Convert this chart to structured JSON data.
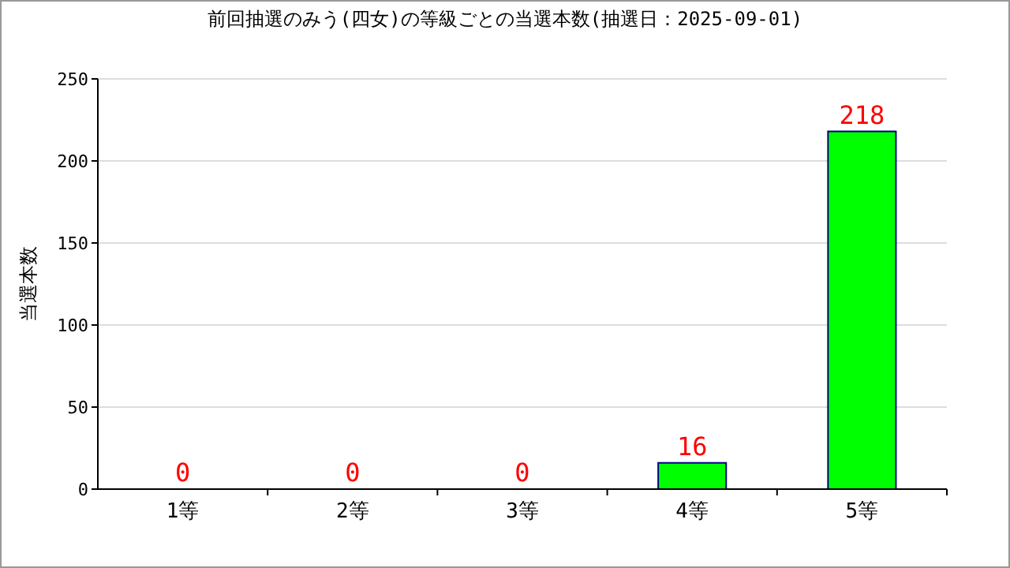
{
  "chart_data": {
    "type": "bar",
    "title": "前回抽選のみう(四女)の等級ごとの当選本数(抽選日：2025-09-01)",
    "ylabel": "当選本数",
    "categories": [
      "1等",
      "2等",
      "3等",
      "4等",
      "5等"
    ],
    "values": [
      0,
      0,
      0,
      16,
      218
    ],
    "color": "#00ff00",
    "ylim": [
      0,
      250
    ],
    "yticks": [
      0,
      50,
      100,
      150,
      200,
      250
    ],
    "grid": "y",
    "data_labels": true
  }
}
